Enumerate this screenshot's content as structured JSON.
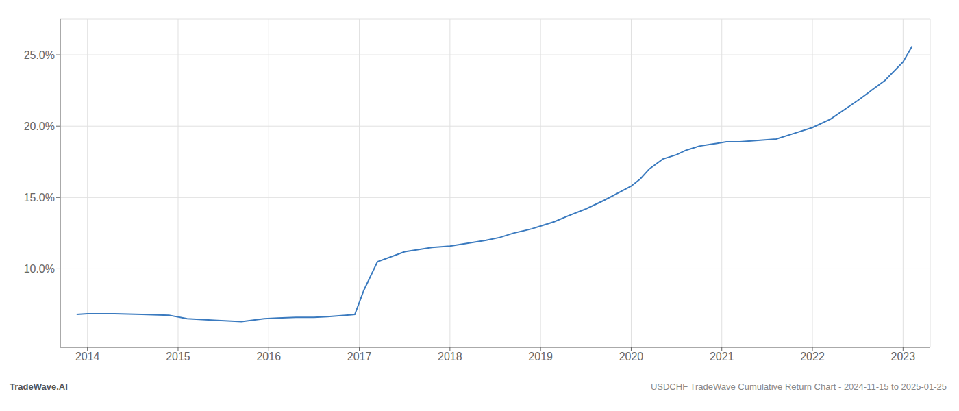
{
  "chart_data": {
    "type": "line",
    "x": [
      2013.88,
      2014.0,
      2014.3,
      2014.6,
      2014.9,
      2015.1,
      2015.4,
      2015.7,
      2015.95,
      2016.1,
      2016.3,
      2016.5,
      2016.65,
      2016.75,
      2016.85,
      2016.95,
      2017.05,
      2017.2,
      2017.5,
      2017.8,
      2018.0,
      2018.2,
      2018.4,
      2018.55,
      2018.7,
      2018.9,
      2019.0,
      2019.15,
      2019.3,
      2019.5,
      2019.7,
      2019.85,
      2020.0,
      2020.1,
      2020.2,
      2020.35,
      2020.5,
      2020.6,
      2020.7,
      2020.75,
      2020.85,
      2020.95,
      2021.05,
      2021.2,
      2021.4,
      2021.6,
      2021.8,
      2022.0,
      2022.2,
      2022.5,
      2022.8,
      2023.0,
      2023.1
    ],
    "values": [
      6.8,
      6.85,
      6.85,
      6.8,
      6.75,
      6.5,
      6.4,
      6.3,
      6.5,
      6.55,
      6.6,
      6.6,
      6.65,
      6.7,
      6.75,
      6.8,
      8.5,
      10.5,
      11.2,
      11.5,
      11.6,
      11.8,
      12.0,
      12.2,
      12.5,
      12.8,
      13.0,
      13.3,
      13.7,
      14.2,
      14.8,
      15.3,
      15.8,
      16.3,
      17.0,
      17.7,
      18.0,
      18.3,
      18.5,
      18.6,
      18.7,
      18.8,
      18.9,
      18.9,
      19.0,
      19.1,
      19.5,
      19.9,
      20.5,
      21.8,
      23.2,
      24.5,
      25.6
    ],
    "color": "#3a7abf",
    "xlim": [
      2013.7,
      2023.3
    ],
    "ylim": [
      4.5,
      27.5
    ],
    "xticks": [
      2014,
      2015,
      2016,
      2017,
      2018,
      2019,
      2020,
      2021,
      2022,
      2023
    ],
    "yticks": [
      {
        "value": 10.0,
        "label": "10.0%"
      },
      {
        "value": 15.0,
        "label": "15.0%"
      },
      {
        "value": 20.0,
        "label": "20.0%"
      },
      {
        "value": 25.0,
        "label": "25.0%"
      }
    ],
    "grid": true,
    "annotations": [
      "TradeWave.AI",
      "USDCHF TradeWave Cumulative Return Chart - 2024-11-15 to 2025-01-25"
    ]
  }
}
